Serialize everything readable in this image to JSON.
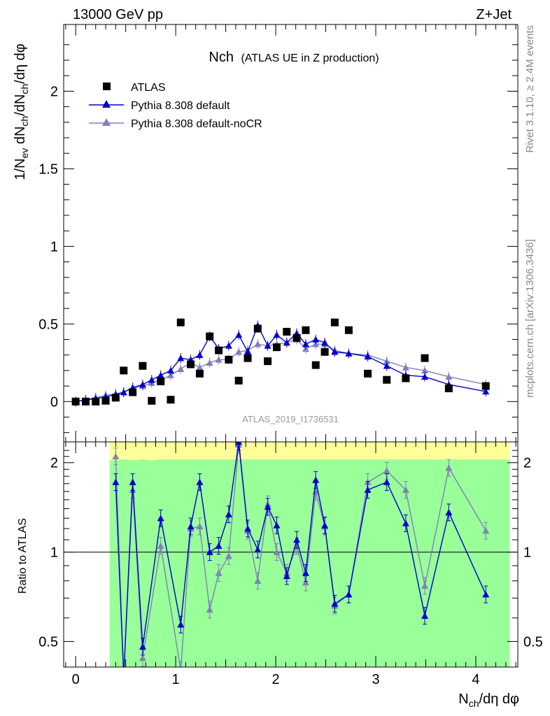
{
  "header": {
    "left": "13000 GeV pp",
    "right": "Z+Jet"
  },
  "side_text": {
    "upper": "Rivet 3.1.10, ≥ 2.4M events",
    "lower": "mcplots.cern.ch [arXiv:1306.3436]"
  },
  "watermark": "ATLAS_2019_I1736531",
  "colors": {
    "data": "#000000",
    "default": "#0000cc",
    "nocr": "#8080bb",
    "band_green": "#99ff99",
    "band_yellow": "#ffff99"
  },
  "chart_data": [
    {
      "type": "scatter",
      "title": "Nch",
      "subtitle": "(ATLAS UE in Z production)",
      "ylabel": "1/N_ev dN_ch/dN_ch/dη dφ",
      "xlim": [
        -0.12,
        4.42
      ],
      "ylim": [
        -0.26,
        2.43
      ],
      "y_ticks": [
        "0",
        "0.5",
        "1",
        "1.5",
        "2"
      ],
      "legend_position": "top-left",
      "series": [
        {
          "name": "ATLAS",
          "x": [
            0.0,
            0.1,
            0.2,
            0.3,
            0.4,
            0.48,
            0.57,
            0.67,
            0.76,
            0.85,
            0.95,
            1.05,
            1.15,
            1.24,
            1.34,
            1.43,
            1.53,
            1.63,
            1.72,
            1.82,
            1.92,
            2.01,
            2.11,
            2.21,
            2.3,
            2.4,
            2.49,
            2.59,
            2.73,
            2.92,
            3.11,
            3.3,
            3.49,
            3.73,
            4.1
          ],
          "y": [
            0.0,
            0.0,
            0.0,
            0.005,
            0.025,
            0.2,
            0.06,
            0.23,
            0.005,
            0.13,
            0.012,
            0.51,
            0.24,
            0.18,
            0.42,
            0.33,
            0.27,
            0.135,
            0.28,
            0.47,
            0.26,
            0.35,
            0.45,
            0.41,
            0.46,
            0.235,
            0.32,
            0.51,
            0.46,
            0.18,
            0.14,
            0.15,
            0.28,
            0.085,
            0.1
          ]
        },
        {
          "name": "Pythia 8.308 default",
          "x": [
            0.0,
            0.1,
            0.2,
            0.3,
            0.4,
            0.48,
            0.57,
            0.67,
            0.76,
            0.85,
            0.95,
            1.05,
            1.15,
            1.24,
            1.34,
            1.43,
            1.53,
            1.63,
            1.72,
            1.82,
            1.92,
            2.01,
            2.11,
            2.21,
            2.3,
            2.4,
            2.49,
            2.59,
            2.73,
            2.92,
            3.11,
            3.3,
            3.49,
            3.73,
            4.1
          ],
          "y": [
            0.0,
            0.01,
            0.02,
            0.03,
            0.045,
            0.06,
            0.09,
            0.11,
            0.14,
            0.17,
            0.2,
            0.28,
            0.27,
            0.3,
            0.42,
            0.34,
            0.36,
            0.43,
            0.32,
            0.49,
            0.36,
            0.43,
            0.38,
            0.44,
            0.37,
            0.4,
            0.38,
            0.32,
            0.31,
            0.29,
            0.23,
            0.17,
            0.16,
            0.11,
            0.065
          ]
        },
        {
          "name": "Pythia 8.308 default-noCR",
          "x": [
            0.0,
            0.1,
            0.2,
            0.3,
            0.4,
            0.48,
            0.57,
            0.67,
            0.76,
            0.85,
            0.95,
            1.05,
            1.15,
            1.24,
            1.34,
            1.43,
            1.53,
            1.63,
            1.72,
            1.82,
            1.92,
            2.01,
            2.11,
            2.21,
            2.3,
            2.4,
            2.49,
            2.59,
            2.73,
            2.92,
            3.11,
            3.3,
            3.49,
            3.73,
            4.1
          ],
          "y": [
            0.0,
            0.012,
            0.025,
            0.04,
            0.05,
            0.06,
            0.085,
            0.1,
            0.12,
            0.14,
            0.17,
            0.21,
            0.25,
            0.22,
            0.25,
            0.27,
            0.27,
            0.32,
            0.33,
            0.37,
            0.36,
            0.37,
            0.38,
            0.4,
            0.34,
            0.37,
            0.37,
            0.33,
            0.31,
            0.3,
            0.26,
            0.22,
            0.2,
            0.16,
            0.11
          ]
        }
      ]
    },
    {
      "type": "line",
      "ylabel": "Ratio to ATLAS",
      "xlabel": "N_ch/dη dφ",
      "log_y": true,
      "xlim": [
        -0.12,
        4.42
      ],
      "ylim": [
        0.41,
        2.35
      ],
      "x_ticks": [
        "0",
        "1",
        "2",
        "3",
        "4"
      ],
      "y_ticks": [
        "0.5",
        "1",
        "2"
      ],
      "reference_line": 1,
      "band": {
        "x_start": 0.34,
        "x_end": 4.34,
        "green_min": 0.41,
        "green_max": 2.05,
        "yellow_top_bins": [
          {
            "x0": 0.34,
            "x1": 0.45,
            "top": 2.35
          },
          {
            "x0": 0.45,
            "x1": 0.53,
            "top": 1.7
          },
          {
            "x0": 0.53,
            "x1": 0.62,
            "top": 2.35
          },
          {
            "x0": 0.62,
            "x1": 0.71,
            "top": 1.85
          },
          {
            "x0": 0.71,
            "x1": 0.81,
            "top": 2.35
          },
          {
            "x0": 1.0,
            "x1": 1.1,
            "top": 1.35
          },
          {
            "x0": 1.8,
            "x1": 2.25,
            "top": 1.9
          },
          {
            "x0": 2.54,
            "x1": 2.64,
            "top": 1.35
          }
        ]
      },
      "series": [
        {
          "name": "Pythia 8.308 default",
          "x": [
            0.4,
            0.48,
            0.57,
            0.67,
            0.85,
            1.05,
            1.15,
            1.24,
            1.34,
            1.43,
            1.53,
            1.63,
            1.72,
            1.82,
            1.92,
            2.01,
            2.11,
            2.21,
            2.3,
            2.4,
            2.49,
            2.59,
            2.73,
            2.92,
            3.11,
            3.3,
            3.49,
            3.73,
            4.1
          ],
          "y": [
            1.72,
            0.38,
            1.72,
            0.48,
            1.3,
            0.57,
            1.22,
            1.72,
            1.0,
            1.05,
            1.34,
            2.35,
            1.2,
            1.02,
            1.42,
            1.23,
            0.83,
            1.1,
            0.85,
            1.75,
            1.23,
            0.67,
            0.72,
            1.62,
            1.72,
            1.25,
            0.61,
            1.36,
            0.72
          ]
        },
        {
          "name": "Pythia 8.308 default-noCR",
          "x": [
            0.4,
            0.48,
            0.57,
            0.67,
            0.85,
            1.05,
            1.15,
            1.24,
            1.34,
            1.43,
            1.53,
            1.63,
            1.72,
            1.82,
            1.92,
            2.01,
            2.11,
            2.21,
            2.3,
            2.4,
            2.49,
            2.59,
            2.73,
            2.92,
            3.11,
            3.3,
            3.49,
            3.73,
            4.1
          ],
          "y": [
            2.1,
            0.38,
            1.62,
            0.44,
            1.05,
            0.4,
            1.2,
            1.22,
            0.64,
            0.85,
            0.97,
            2.3,
            1.18,
            0.8,
            1.45,
            1.0,
            0.85,
            1.05,
            0.79,
            1.6,
            1.22,
            0.66,
            0.72,
            1.72,
            1.88,
            1.62,
            0.77,
            1.92,
            1.18
          ]
        }
      ]
    }
  ]
}
